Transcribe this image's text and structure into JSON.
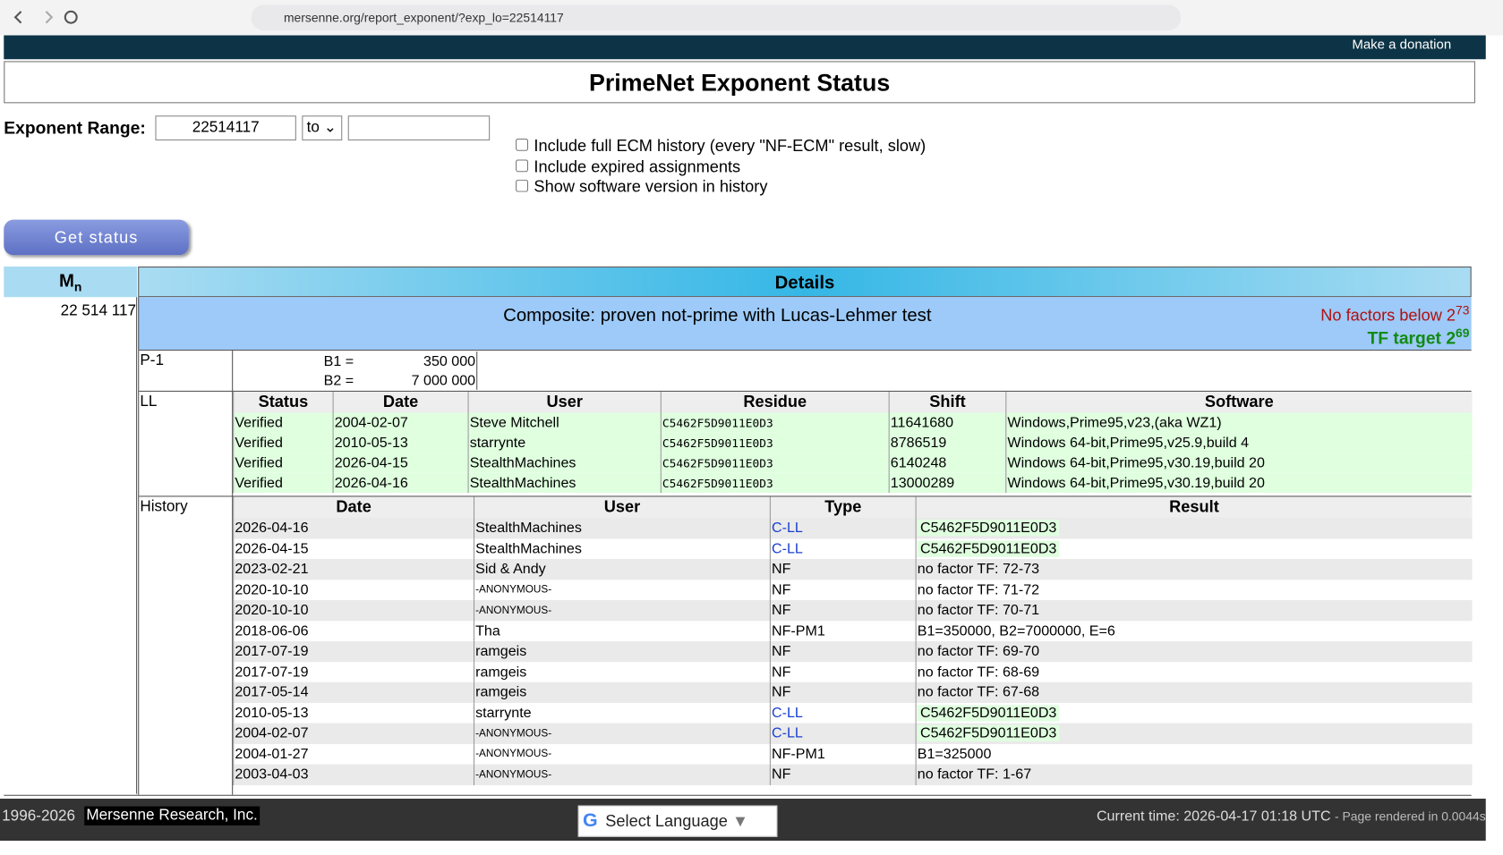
{
  "browser": {
    "url": "mersenne.org/report_exponent/?exp_lo=22514117"
  },
  "nav": {
    "donation": "Make a donation"
  },
  "title": "PrimeNet Exponent Status",
  "form": {
    "range_label": "Exponent Range:",
    "exp_lo": "22514117",
    "range_mode": "to",
    "options": [
      "Include full ECM history (every \"NF-ECM\" result, slow)",
      "Include expired assignments",
      "Show software version in history"
    ],
    "button": "Get status"
  },
  "table": {
    "col_exponent": {
      "base": "M",
      "sub": "n"
    },
    "col_details": "Details",
    "exponent": "22 514 117",
    "status": "Composite: proven not-prime with Lucas-Lehmer test",
    "no_factors": {
      "text": "No factors below 2",
      "exp": "73"
    },
    "tf_target": {
      "text": "TF target 2",
      "exp": "69"
    },
    "p1": {
      "label": "P-1",
      "rows": [
        [
          "B1 =",
          "350 000"
        ],
        [
          "B2 =",
          "7 000 000"
        ]
      ]
    },
    "ll": {
      "label": "LL",
      "headers": [
        "Status",
        "Date",
        "User",
        "Residue",
        "Shift",
        "Software"
      ],
      "rows": [
        [
          "Verified",
          "2004-02-07",
          "Steve Mitchell",
          "C5462F5D9011E0D3",
          "11641680",
          "Windows,Prime95,v23,(aka WZ1)"
        ],
        [
          "Verified",
          "2010-05-13",
          "starrynte",
          "C5462F5D9011E0D3",
          "8786519",
          "Windows 64-bit,Prime95,v25.9,build 4"
        ],
        [
          "Verified",
          "2026-04-15",
          "StealthMachines",
          "C5462F5D9011E0D3",
          "6140248",
          "Windows 64-bit,Prime95,v30.19,build 20"
        ],
        [
          "Verified",
          "2026-04-16",
          "StealthMachines",
          "C5462F5D9011E0D3",
          "13000289",
          "Windows 64-bit,Prime95,v30.19,build 20"
        ]
      ]
    },
    "history": {
      "label": "History",
      "headers": [
        "Date",
        "User",
        "Type",
        "Result"
      ],
      "rows": [
        [
          "2026-04-16",
          "StealthMachines",
          "C-LL",
          "C5462F5D9011E0D3"
        ],
        [
          "2026-04-15",
          "StealthMachines",
          "C-LL",
          "C5462F5D9011E0D3"
        ],
        [
          "2023-02-21",
          "Sid & Andy",
          "NF",
          "no factor TF: 72-73"
        ],
        [
          "2020-10-10",
          "-ANONYMOUS-",
          "NF",
          "no factor TF: 71-72"
        ],
        [
          "2020-10-10",
          "-ANONYMOUS-",
          "NF",
          "no factor TF: 70-71"
        ],
        [
          "2018-06-06",
          "Tha",
          "NF-PM1",
          "B1=350000, B2=7000000, E=6"
        ],
        [
          "2017-07-19",
          "ramgeis",
          "NF",
          "no factor TF: 69-70"
        ],
        [
          "2017-07-19",
          "ramgeis",
          "NF",
          "no factor TF: 68-69"
        ],
        [
          "2017-05-14",
          "ramgeis",
          "NF",
          "no factor TF: 67-68"
        ],
        [
          "2010-05-13",
          "starrynte",
          "C-LL",
          "C5462F5D9011E0D3"
        ],
        [
          "2004-02-07",
          "-ANONYMOUS-",
          "C-LL",
          "C5462F5D9011E0D3"
        ],
        [
          "2004-01-27",
          "-ANONYMOUS-",
          "NF-PM1",
          "B1=325000"
        ],
        [
          "2003-04-03",
          "-ANONYMOUS-",
          "NF",
          "no factor TF: 1-67"
        ]
      ]
    }
  },
  "footer": {
    "years": "1996-2026",
    "org": "Mersenne Research, Inc.",
    "language": "Select Language",
    "time": "Current time: 2026-04-17 01:18 UTC",
    "rendered": "- Page rendered in 0.0044s"
  }
}
